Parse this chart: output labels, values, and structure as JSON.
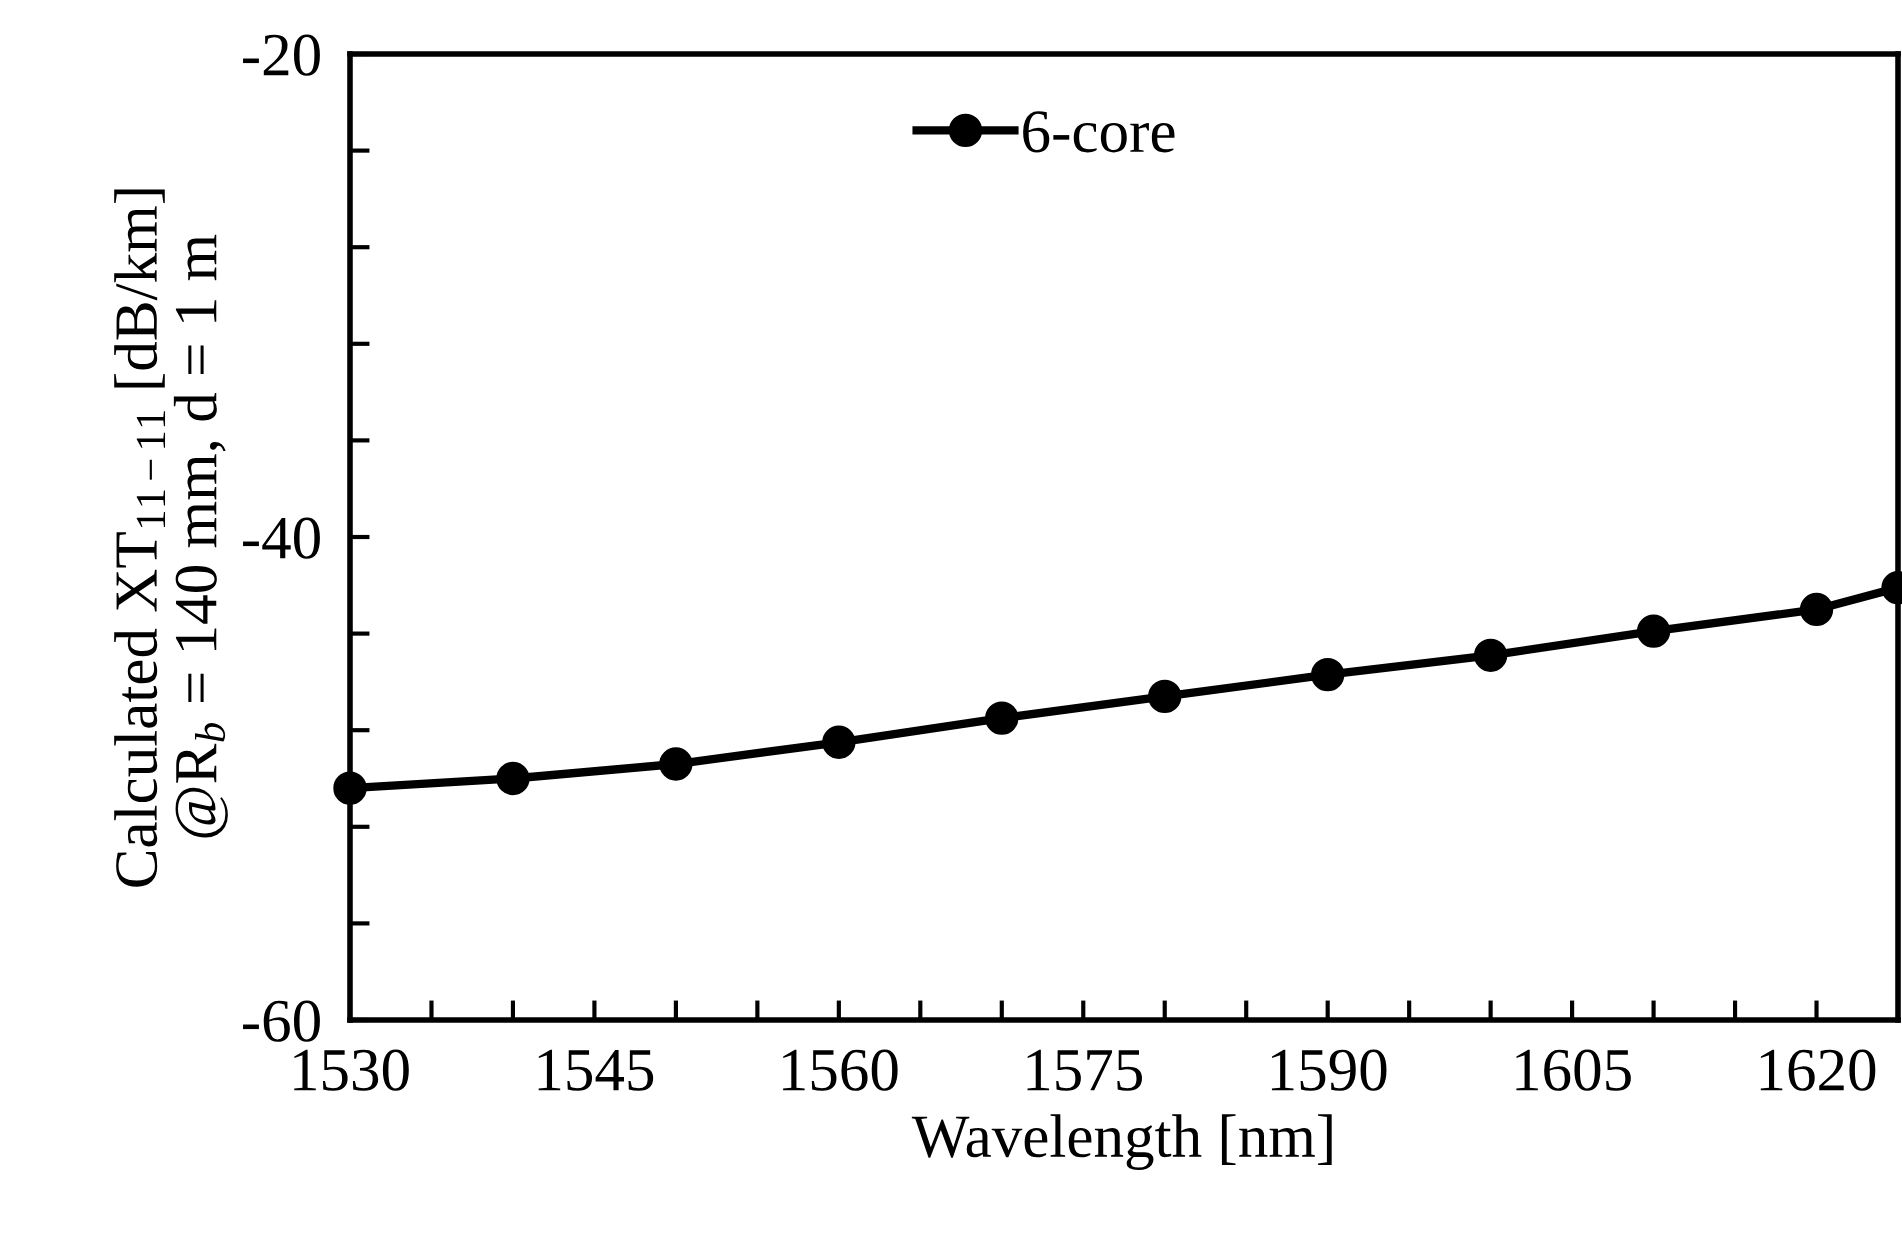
{
  "chart_data": {
    "type": "line",
    "xlabel": "Wavelength [nm]",
    "ylabel": "Calculated XT$_{11−11}$ [dB/km]\n@R$_{b}$ = 140 mm, d = 1 m",
    "x": [
      1530,
      1540,
      1550,
      1560,
      1570,
      1580,
      1590,
      1600,
      1610,
      1620,
      1625
    ],
    "series": [
      {
        "name": "6-core",
        "color": "#000000",
        "values": [
          -50.4,
          -50.0,
          -49.4,
          -48.5,
          -47.5,
          -46.6,
          -45.7,
          -44.9,
          -43.9,
          -43.0,
          -42.1
        ]
      }
    ],
    "xlim": [
      1530,
      1625
    ],
    "xticks": [
      1530,
      {
        "value": 1535,
        "label": null
      },
      {
        "value": 1540,
        "label": null
      },
      1545,
      {
        "value": 1550,
        "label": null
      },
      {
        "value": 1555,
        "label": null
      },
      1560,
      {
        "value": 1565,
        "label": null
      },
      {
        "value": 1570,
        "label": null
      },
      1575,
      {
        "value": 1580,
        "label": null
      },
      {
        "value": 1585,
        "label": null
      },
      1590,
      {
        "value": 1595,
        "label": null
      },
      {
        "value": 1600,
        "label": null
      },
      1605,
      {
        "value": 1610,
        "label": null
      },
      {
        "value": 1615,
        "label": null
      },
      1620
    ],
    "ylim": [
      -60,
      -20
    ],
    "yticks": [
      -60,
      {
        "value": -56,
        "label": null
      },
      {
        "value": -52,
        "label": null
      },
      {
        "value": -48,
        "label": null
      },
      {
        "value": -44,
        "label": null
      },
      -40,
      {
        "value": -36,
        "label": null
      },
      {
        "value": -32,
        "label": null
      },
      {
        "value": -28,
        "label": null
      },
      {
        "value": -24,
        "label": null
      },
      -20
    ],
    "grid": false,
    "legend": "top",
    "marker": "circle",
    "line_style": "solid"
  }
}
